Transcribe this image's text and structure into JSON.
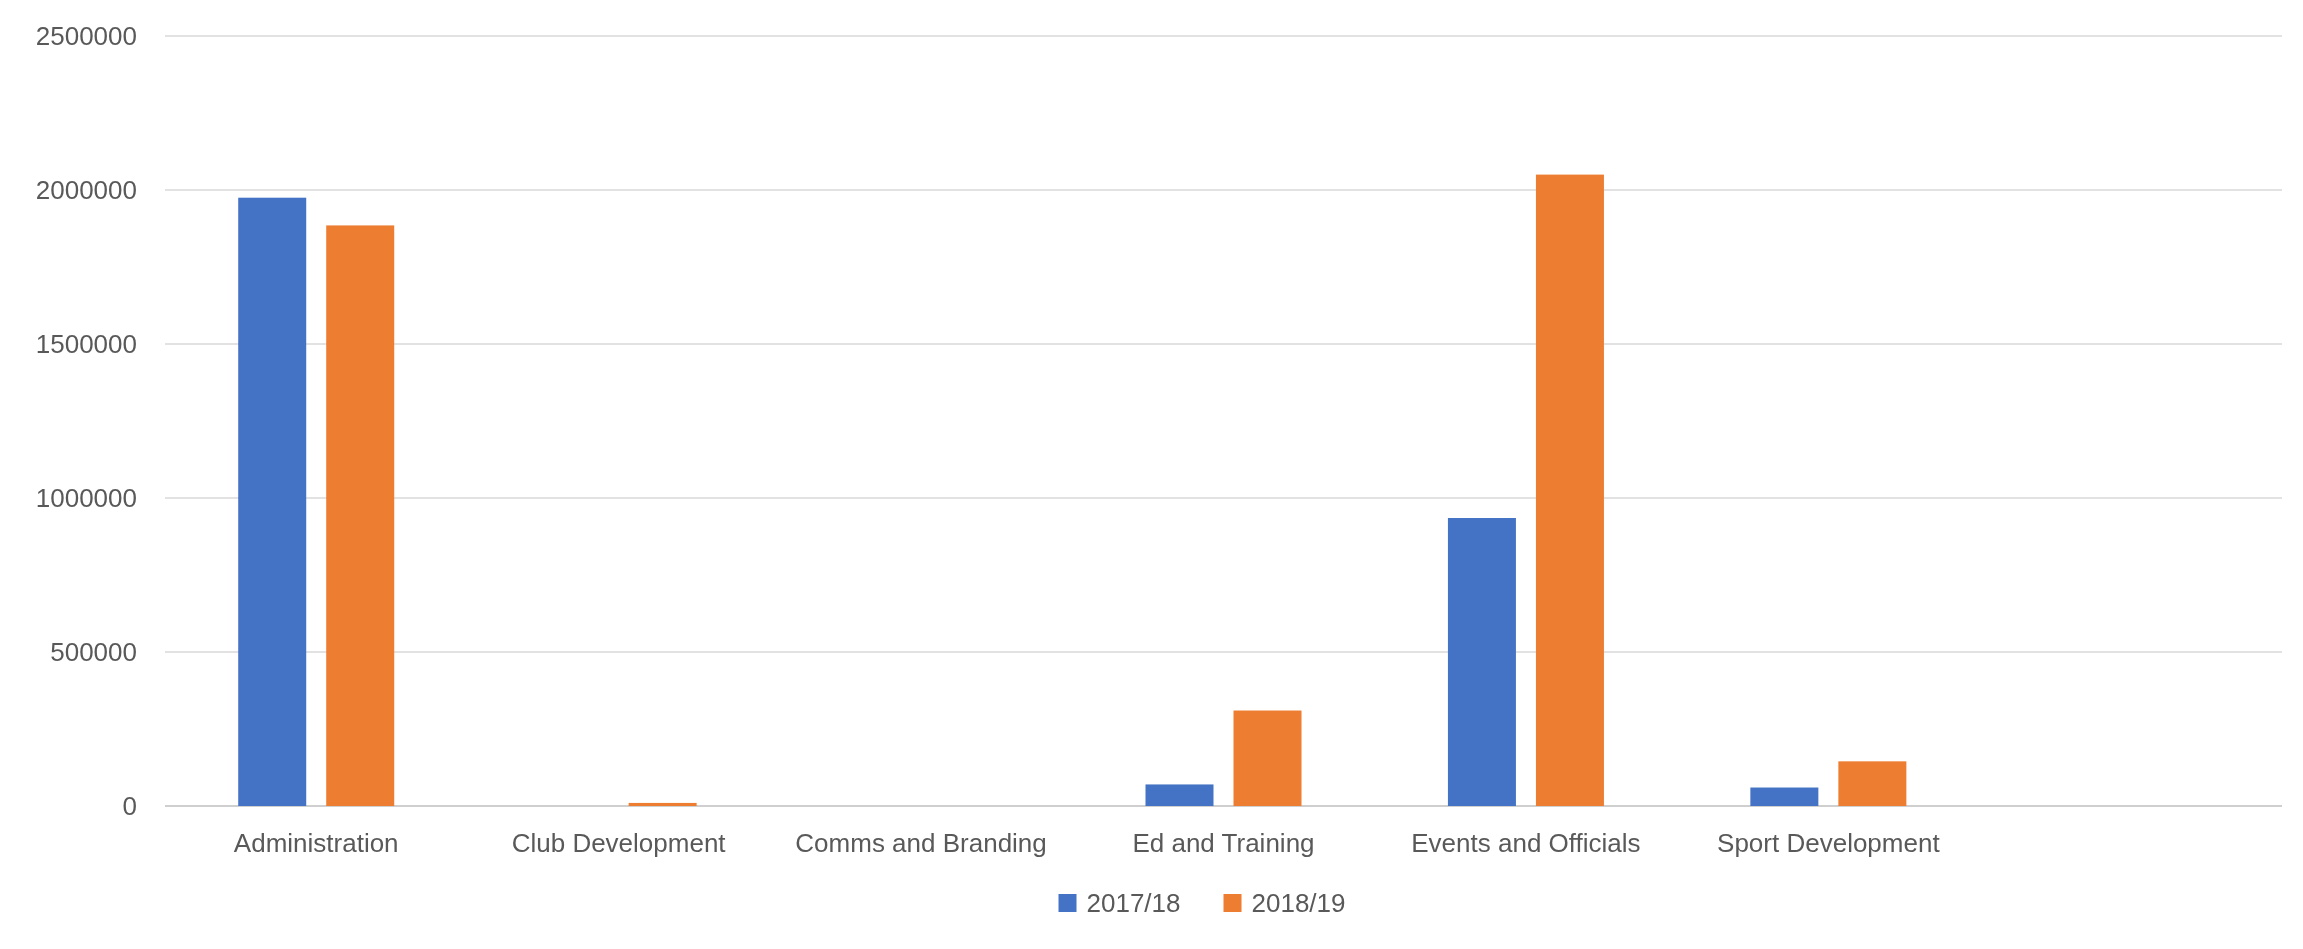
{
  "chart_data": {
    "type": "bar",
    "categories": [
      "Administration",
      "Club Development",
      "Comms and Branding",
      "Ed and Training",
      "Events and Officials",
      "Sport Development",
      null
    ],
    "series": [
      {
        "name": "2017/18",
        "color": "#4472c4",
        "values": [
          1975000,
          null,
          null,
          70000,
          935000,
          60000,
          null
        ]
      },
      {
        "name": "2018/19",
        "color": "#ed7d31",
        "values": [
          1885000,
          10000,
          null,
          310000,
          2050000,
          145000,
          null
        ]
      }
    ],
    "ylim": [
      0,
      2500000
    ],
    "yticks": [
      0,
      500000,
      1000000,
      1500000,
      2000000,
      2500000
    ],
    "grid": "y",
    "legend": "bottom"
  }
}
